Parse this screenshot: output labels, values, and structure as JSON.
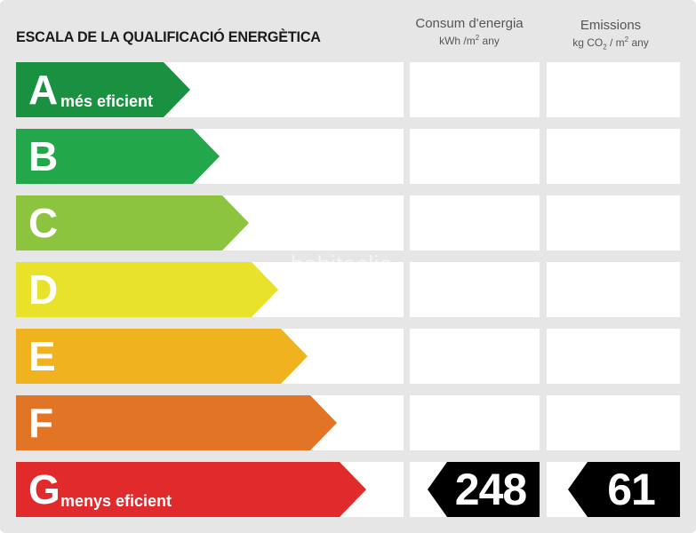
{
  "title": "ESCALA DE LA QUALIFICACIÓ ENERGÈTICA",
  "columns": {
    "consumption": {
      "heading": "Consum d'energia",
      "unit_prefix": "kWh /m",
      "unit_sup": "2",
      "unit_suffix": " any"
    },
    "emissions": {
      "heading": "Emissions",
      "unit_prefix": "kg CO",
      "unit_sub": "2",
      "unit_mid": " / m",
      "unit_sup": "2",
      "unit_suffix": " any"
    }
  },
  "classes": [
    {
      "letter": "A",
      "caption": "més eficient",
      "color": "#1a9140"
    },
    {
      "letter": "B",
      "caption": "",
      "color": "#22a84a"
    },
    {
      "letter": "C",
      "caption": "",
      "color": "#8cc43f"
    },
    {
      "letter": "D",
      "caption": "",
      "color": "#e8e22a"
    },
    {
      "letter": "E",
      "caption": "",
      "color": "#f0b21f"
    },
    {
      "letter": "F",
      "caption": "",
      "color": "#e27426"
    },
    {
      "letter": "G",
      "caption": "menys eficient",
      "color": "#e12a2b"
    }
  ],
  "rating": {
    "class": "G",
    "consumption_value": "248",
    "emissions_value": "61",
    "indicator_color": "#000000"
  },
  "watermark": "habitaclia"
}
